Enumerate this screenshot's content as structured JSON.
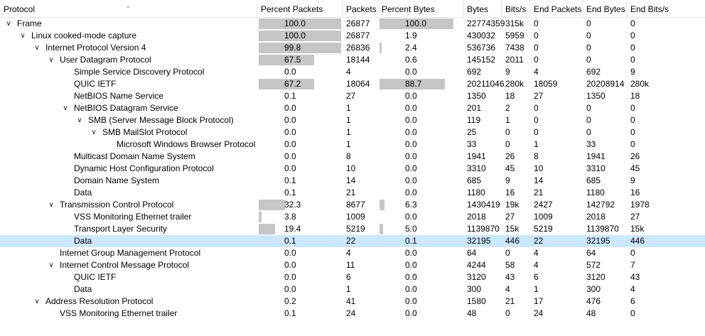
{
  "columns": [
    {
      "key": "protocol",
      "label": "Protocol"
    },
    {
      "key": "pp",
      "label": "Percent Packets"
    },
    {
      "key": "packets",
      "label": "Packets"
    },
    {
      "key": "pb",
      "label": "Percent Bytes"
    },
    {
      "key": "bytes",
      "label": "Bytes"
    },
    {
      "key": "bits",
      "label": "Bits/s"
    },
    {
      "key": "end_packets",
      "label": "End Packets"
    },
    {
      "key": "end_bytes",
      "label": "End Bytes"
    },
    {
      "key": "end_bits",
      "label": "End Bits/s"
    }
  ],
  "colors": {
    "bar": "#c6c6c6",
    "selected_row": "#cce8ff",
    "grid": "#e5e5e5"
  },
  "rows": [
    {
      "name": "Frame",
      "depth": 0,
      "expanded": true,
      "pp": "100.0",
      "packets": "26877",
      "pb": "100.0",
      "bytes": "22774359",
      "bits": "315k",
      "end_packets": "0",
      "end_bytes": "0",
      "end_bits": "0"
    },
    {
      "name": "Linux cooked-mode capture",
      "depth": 1,
      "expanded": true,
      "pp": "100.0",
      "packets": "26877",
      "pb": "1.9",
      "bytes": "430032",
      "bits": "5959",
      "end_packets": "0",
      "end_bytes": "0",
      "end_bits": "0"
    },
    {
      "name": "Internet Protocol Version 4",
      "depth": 2,
      "expanded": true,
      "pp": "99.8",
      "packets": "26836",
      "pb": "2.4",
      "bytes": "536736",
      "bits": "7438",
      "end_packets": "0",
      "end_bytes": "0",
      "end_bits": "0"
    },
    {
      "name": "User Datagram Protocol",
      "depth": 3,
      "expanded": true,
      "pp": "67.5",
      "packets": "18144",
      "pb": "0.6",
      "bytes": "145152",
      "bits": "2011",
      "end_packets": "0",
      "end_bytes": "0",
      "end_bits": "0"
    },
    {
      "name": "Simple Service Discovery Protocol",
      "depth": 4,
      "pp": "0.0",
      "packets": "4",
      "pb": "0.0",
      "bytes": "692",
      "bits": "9",
      "end_packets": "4",
      "end_bytes": "692",
      "end_bits": "9"
    },
    {
      "name": "QUIC IETF",
      "depth": 4,
      "pp": "67.2",
      "packets": "18064",
      "pb": "88.7",
      "bytes": "20211046",
      "bits": "280k",
      "end_packets": "18059",
      "end_bytes": "20208914",
      "end_bits": "280k"
    },
    {
      "name": "NetBIOS Name Service",
      "depth": 4,
      "pp": "0.1",
      "packets": "27",
      "pb": "0.0",
      "bytes": "1350",
      "bits": "18",
      "end_packets": "27",
      "end_bytes": "1350",
      "end_bits": "18"
    },
    {
      "name": "NetBIOS Datagram Service",
      "depth": 4,
      "expanded": true,
      "pp": "0.0",
      "packets": "1",
      "pb": "0.0",
      "bytes": "201",
      "bits": "2",
      "end_packets": "0",
      "end_bytes": "0",
      "end_bits": "0"
    },
    {
      "name": "SMB (Server Message Block Protocol)",
      "depth": 5,
      "expanded": true,
      "pp": "0.0",
      "packets": "1",
      "pb": "0.0",
      "bytes": "119",
      "bits": "1",
      "end_packets": "0",
      "end_bytes": "0",
      "end_bits": "0"
    },
    {
      "name": "SMB MailSlot Protocol",
      "depth": 6,
      "expanded": true,
      "pp": "0.0",
      "packets": "1",
      "pb": "0.0",
      "bytes": "25",
      "bits": "0",
      "end_packets": "0",
      "end_bytes": "0",
      "end_bits": "0"
    },
    {
      "name": "Microsoft Windows Browser Protocol",
      "depth": 7,
      "pp": "0.0",
      "packets": "1",
      "pb": "0.0",
      "bytes": "33",
      "bits": "0",
      "end_packets": "1",
      "end_bytes": "33",
      "end_bits": "0"
    },
    {
      "name": "Multicast Domain Name System",
      "depth": 4,
      "pp": "0.0",
      "packets": "8",
      "pb": "0.0",
      "bytes": "1941",
      "bits": "26",
      "end_packets": "8",
      "end_bytes": "1941",
      "end_bits": "26"
    },
    {
      "name": "Dynamic Host Configuration Protocol",
      "depth": 4,
      "pp": "0.0",
      "packets": "10",
      "pb": "0.0",
      "bytes": "3310",
      "bits": "45",
      "end_packets": "10",
      "end_bytes": "3310",
      "end_bits": "45"
    },
    {
      "name": "Domain Name System",
      "depth": 4,
      "pp": "0.1",
      "packets": "14",
      "pb": "0.0",
      "bytes": "685",
      "bits": "9",
      "end_packets": "14",
      "end_bytes": "685",
      "end_bits": "9"
    },
    {
      "name": "Data",
      "depth": 4,
      "pp": "0.1",
      "packets": "21",
      "pb": "0.0",
      "bytes": "1180",
      "bits": "16",
      "end_packets": "21",
      "end_bytes": "1180",
      "end_bits": "16"
    },
    {
      "name": "Transmission Control Protocol",
      "depth": 3,
      "expanded": true,
      "pp": "32.3",
      "packets": "8677",
      "pb": "6.3",
      "bytes": "1430419",
      "bits": "19k",
      "end_packets": "2427",
      "end_bytes": "142792",
      "end_bits": "1978"
    },
    {
      "name": "VSS Monitoring Ethernet trailer",
      "depth": 4,
      "pp": "3.8",
      "packets": "1009",
      "pb": "0.0",
      "bytes": "2018",
      "bits": "27",
      "end_packets": "1009",
      "end_bytes": "2018",
      "end_bits": "27"
    },
    {
      "name": "Transport Layer Security",
      "depth": 4,
      "pp": "19.4",
      "packets": "5219",
      "pb": "5.0",
      "bytes": "1139870",
      "bits": "15k",
      "end_packets": "5219",
      "end_bytes": "1139870",
      "end_bits": "15k"
    },
    {
      "name": "Data",
      "depth": 4,
      "selected": true,
      "pp": "0.1",
      "packets": "22",
      "pb": "0.1",
      "bytes": "32195",
      "bits": "446",
      "end_packets": "22",
      "end_bytes": "32195",
      "end_bits": "446"
    },
    {
      "name": "Internet Group Management Protocol",
      "depth": 3,
      "pp": "0.0",
      "packets": "4",
      "pb": "0.0",
      "bytes": "64",
      "bits": "0",
      "end_packets": "4",
      "end_bytes": "64",
      "end_bits": "0"
    },
    {
      "name": "Internet Control Message Protocol",
      "depth": 3,
      "expanded": true,
      "pp": "0.0",
      "packets": "11",
      "pb": "0.0",
      "bytes": "4244",
      "bits": "58",
      "end_packets": "4",
      "end_bytes": "572",
      "end_bits": "7"
    },
    {
      "name": "QUIC IETF",
      "depth": 4,
      "pp": "0.0",
      "packets": "6",
      "pb": "0.0",
      "bytes": "3120",
      "bits": "43",
      "end_packets": "6",
      "end_bytes": "3120",
      "end_bits": "43"
    },
    {
      "name": "Data",
      "depth": 4,
      "pp": "0.0",
      "packets": "1",
      "pb": "0.0",
      "bytes": "300",
      "bits": "4",
      "end_packets": "1",
      "end_bytes": "300",
      "end_bits": "4"
    },
    {
      "name": "Address Resolution Protocol",
      "depth": 2,
      "expanded": true,
      "pp": "0.2",
      "packets": "41",
      "pb": "0.0",
      "bytes": "1580",
      "bits": "21",
      "end_packets": "17",
      "end_bytes": "476",
      "end_bits": "6"
    },
    {
      "name": "VSS Monitoring Ethernet trailer",
      "depth": 3,
      "pp": "0.1",
      "packets": "24",
      "pb": "0.0",
      "bytes": "48",
      "bits": "0",
      "end_packets": "24",
      "end_bytes": "48",
      "end_bits": "0"
    }
  ]
}
